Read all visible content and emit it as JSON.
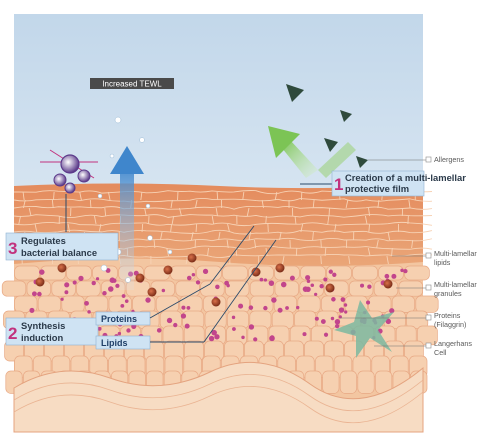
{
  "tewl_label": "Increased TEWL",
  "callouts": {
    "film": {
      "number": "1",
      "line1": "Creation of a multi-lamellar",
      "line2": "protective film"
    },
    "bacteria": {
      "number": "3",
      "line1": "Regulates",
      "line2": "bacterial balance"
    },
    "synthesis": {
      "number": "2",
      "line1": "Synthesis",
      "line2": "induction"
    }
  },
  "sub_labels": {
    "proteins": "Proteins",
    "lipids": "Lipids"
  },
  "legend": {
    "allergens": "Allergens",
    "lipids_1": "Multi-lamellar",
    "lipids_2": "lipids",
    "granules_1": "Multi-lamellar",
    "granules_2": "granules",
    "proteins_1": "Proteins",
    "proteins_2": "(Filaggrin)",
    "langerhans_1": "Langerhans",
    "langerhans_2": "Cell"
  },
  "colors": {
    "sky_top": "#c9dcec",
    "sky_bottom": "#eef4f9",
    "stratum_corneum": "#e2865a",
    "epidermis": "#f3c6a1",
    "basal": "#f0b98f",
    "dermis": "#f6d2b3",
    "accent_magenta": "#c2327e",
    "callout_blue": "#cfe3f3",
    "arrow_blue": "#4a8fd0",
    "arrow_green": "#8fcf6a"
  },
  "icons": [
    "allergen-triangle-icon",
    "bacteria-cluster-icon",
    "langerhans-cell-icon",
    "granule-icon"
  ]
}
